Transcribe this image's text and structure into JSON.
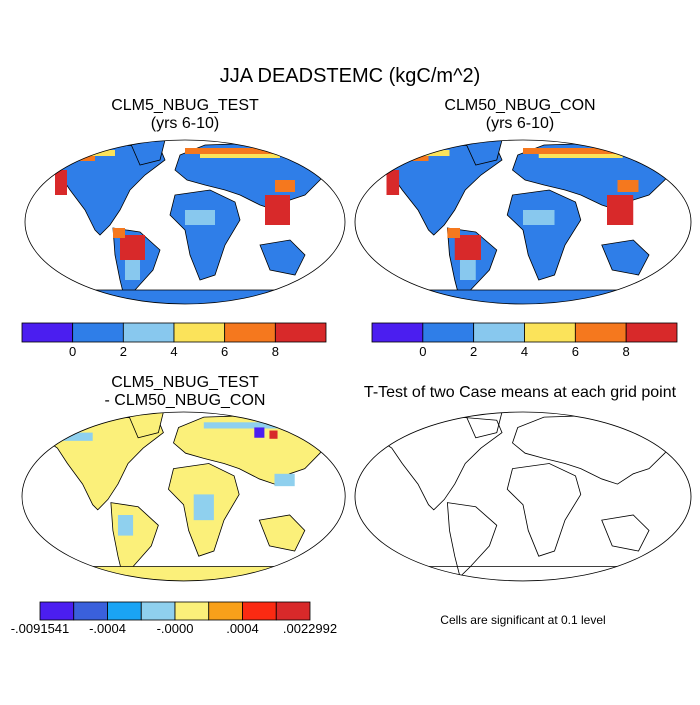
{
  "title": "JJA DEADSTEMC (kgC/m^2)",
  "panels": [
    {
      "title": [
        "CLM5_NBUG_TEST",
        "(yrs 6-10)"
      ],
      "colorbar": {
        "colors": [
          "#4b1ef0",
          "#2f7ee8",
          "#88c8ee",
          "#fbe35a",
          "#f5781e",
          "#d8292a"
        ],
        "labels": [
          "0",
          "2",
          "4",
          "6",
          "8"
        ]
      }
    },
    {
      "title": [
        "CLM50_NBUG_CON",
        "(yrs 6-10)"
      ],
      "colorbar": {
        "colors": [
          "#4b1ef0",
          "#2f7ee8",
          "#88c8ee",
          "#fbe35a",
          "#f5781e",
          "#d8292a"
        ],
        "labels": [
          "0",
          "2",
          "4",
          "6",
          "8"
        ]
      }
    },
    {
      "title": [
        "CLM5_NBUG_TEST",
        "- CLM50_NBUG_CON"
      ],
      "colorbar": {
        "colors": [
          "#4b1ef0",
          "#3a60dc",
          "#1aa4f5",
          "#8fd0ee",
          "#fbf07a",
          "#f8a01a",
          "#fb2a12",
          "#d8292a"
        ],
        "labels": [
          "-.0091541",
          "-.0004",
          "-.0000",
          ".0004",
          ".0022992"
        ]
      }
    },
    {
      "title": [
        "T-Test of two Case means at each grid point"
      ]
    }
  ],
  "note": "Cells are significant at 0.1 level"
}
